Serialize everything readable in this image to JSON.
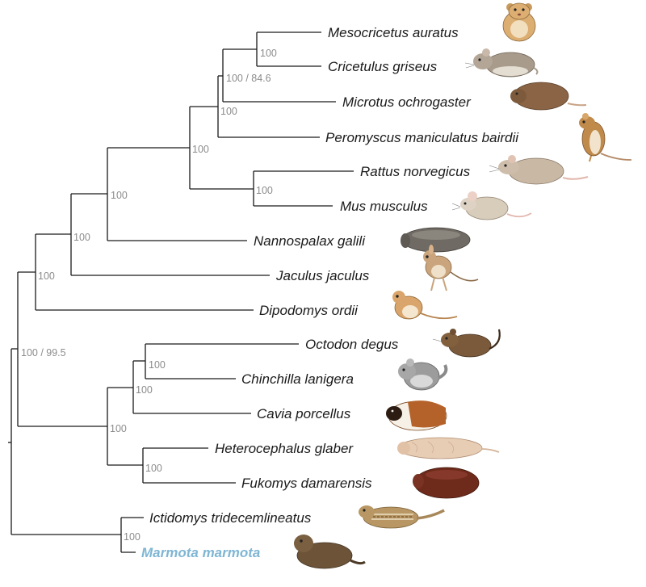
{
  "taxa": [
    {
      "name": "Mesocricetus auratus",
      "icon": "hamster-icon",
      "color": "#dcae72"
    },
    {
      "name": "Cricetulus griseus",
      "icon": "grey-hamster-icon",
      "color": "#a89b8c"
    },
    {
      "name": "Microtus ochrogaster",
      "icon": "vole-icon",
      "color": "#8a6444"
    },
    {
      "name": "Peromyscus maniculatus bairdii",
      "icon": "deer-mouse-icon",
      "color": "#c08a4a"
    },
    {
      "name": "Rattus norvegicus",
      "icon": "rat-icon",
      "color": "#c9b8a4"
    },
    {
      "name": "Mus musculus",
      "icon": "mouse-icon",
      "color": "#d8ccbb"
    },
    {
      "name": "Nannospalax galili",
      "icon": "blind-mole-rat-icon",
      "color": "#6f6a63"
    },
    {
      "name": "Jaculus jaculus",
      "icon": "jerboa-icon",
      "color": "#c9a47c"
    },
    {
      "name": "Dipodomys ordii",
      "icon": "kangaroo-rat-icon",
      "color": "#d9a56c"
    },
    {
      "name": "Octodon degus",
      "icon": "degu-icon",
      "color": "#7a5a3a"
    },
    {
      "name": "Chinchilla lanigera",
      "icon": "chinchilla-icon",
      "color": "#9c9c9c"
    },
    {
      "name": "Cavia porcellus",
      "icon": "guinea-pig-icon",
      "color": "#b5622a"
    },
    {
      "name": "Heterocephalus glaber",
      "icon": "naked-mole-rat-icon",
      "color": "#e8cdb5"
    },
    {
      "name": "Fukomys damarensis",
      "icon": "damaraland-mole-rat-icon",
      "color": "#6e2a1a"
    },
    {
      "name": "Ictidomys tridecemlineatus",
      "icon": "ground-squirrel-icon",
      "color": "#b89764"
    },
    {
      "name": "Marmota marmota",
      "icon": "marmot-icon",
      "color": "#6d5438",
      "highlight": true
    }
  ],
  "support": {
    "mesocricetus_cricetulus": "100",
    "cricetinae_microtus": "100 / 84.6",
    "cricetidae": "100",
    "muroidea": "100",
    "rattus_mus": "100",
    "with_nannospalax": "100",
    "with_jaculus": "100",
    "with_dipodomys": "100",
    "root_clade": "100 / 99.5",
    "octodon_chinchilla": "100",
    "with_cavia": "100",
    "hystricomorpha": "100",
    "bathyergidae": "100",
    "sciuridae": "100"
  },
  "colors": {
    "branch": "#1a1a1a",
    "support": "#8c8c8c",
    "highlight": "#7fb6d4"
  }
}
